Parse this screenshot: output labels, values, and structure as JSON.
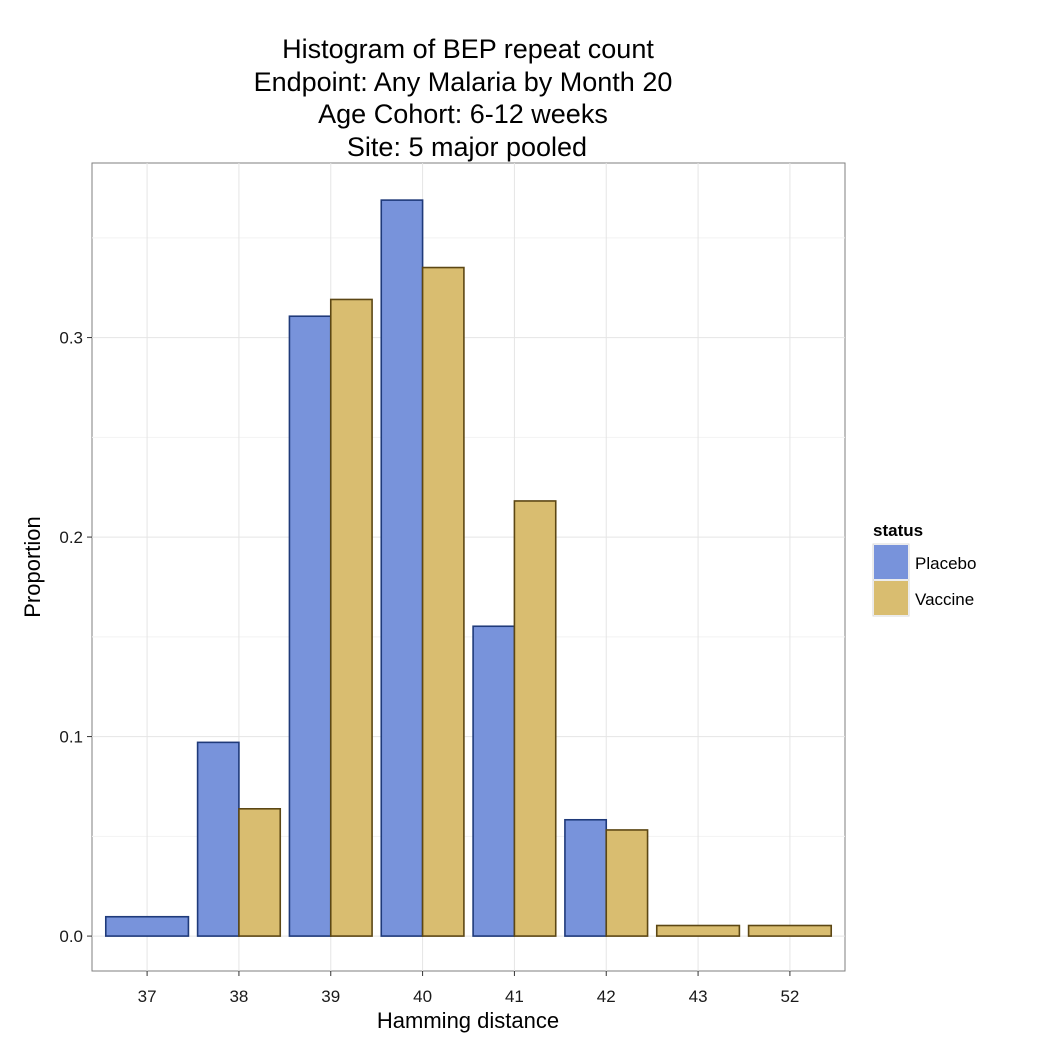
{
  "chart_data": {
    "type": "bar",
    "title_lines": [
      "Histogram of BEP repeat count",
      "Endpoint: Any Malaria by Month 20",
      "Age Cohort: 6-12 weeks",
      "Site: 5 major pooled"
    ],
    "xlabel": "Hamming distance",
    "ylabel": "Proportion",
    "categories": [
      "37",
      "38",
      "39",
      "40",
      "41",
      "42",
      "43",
      "52"
    ],
    "ylim": [
      -0.0175,
      0.3875
    ],
    "yticks": [
      0.0,
      0.1,
      0.2,
      0.3
    ],
    "ytick_labels": [
      "0.0",
      "0.1",
      "0.2",
      "0.3"
    ],
    "grid": true,
    "legend": {
      "title": "status",
      "position": "right"
    },
    "series": [
      {
        "name": "Placebo",
        "color": "#7893DB",
        "border": "#1F3A7A",
        "values": [
          0.0097,
          0.0971,
          0.3107,
          0.3689,
          0.1553,
          0.0583,
          null,
          null
        ]
      },
      {
        "name": "Vaccine",
        "color": "#D9BD70",
        "border": "#5C4714",
        "values": [
          null,
          0.0638,
          0.3191,
          0.3351,
          0.2181,
          0.0532,
          0.0053,
          0.0053
        ]
      }
    ]
  }
}
